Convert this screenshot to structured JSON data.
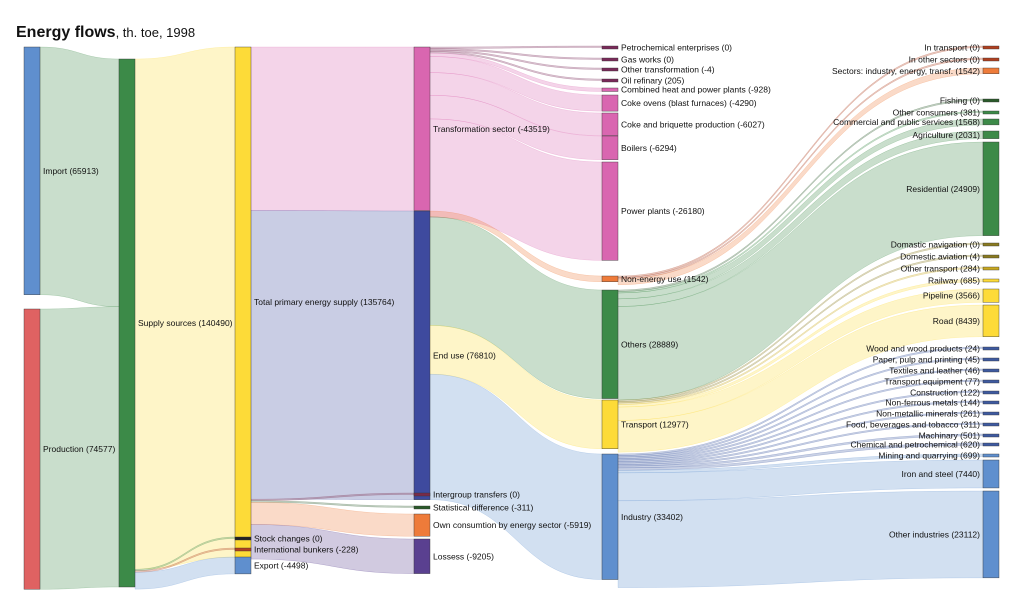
{
  "chart_data": {
    "type": "sankey",
    "title": "Energy flows",
    "subtitle": ", th. toe, 1998",
    "nodes": [
      {
        "id": "import",
        "label": "Import (65913)",
        "value": 65913,
        "color": "#5f8fce"
      },
      {
        "id": "production",
        "label": "Production (74577)",
        "value": 74577,
        "color": "#df6262"
      },
      {
        "id": "supply",
        "label": "Supply sources (140490)",
        "value": 140490,
        "color": "#3c8a48"
      },
      {
        "id": "tpes",
        "label": "Total primary energy supply (135764)",
        "value": 135764,
        "color": "#fddb38"
      },
      {
        "id": "stock",
        "label": "Stock changes (0)",
        "value": 0,
        "color": "#222222"
      },
      {
        "id": "bunkers",
        "label": "International bunkers (-228)",
        "value": -228,
        "color": "#b04020"
      },
      {
        "id": "export",
        "label": "Export (-4498)",
        "value": -4498,
        "color": "#5f8fce"
      },
      {
        "id": "transf",
        "label": "Transformation sector (-43519)",
        "value": -43519,
        "color": "#d966b0"
      },
      {
        "id": "enduse",
        "label": "End use (76810)",
        "value": 76810,
        "color": "#3e4a9e"
      },
      {
        "id": "intergroup",
        "label": "Intergroup transfers (0)",
        "value": 0,
        "color": "#7a2a4a"
      },
      {
        "id": "statdiff",
        "label": "Statistical difference (-311)",
        "value": -311,
        "color": "#2a5a2a"
      },
      {
        "id": "owncons",
        "label": "Own consumtion by energy sector (-5919)",
        "value": -5919,
        "color": "#ee7b3a"
      },
      {
        "id": "losses",
        "label": "Lossess (-9205)",
        "value": -9205,
        "color": "#5a4090"
      },
      {
        "id": "petrochem",
        "label": "Petrochemical enterprises (0)",
        "value": 0,
        "color": "#7a2a5a"
      },
      {
        "id": "gasworks",
        "label": "Gas works (0)",
        "value": 0,
        "color": "#7a2a5a"
      },
      {
        "id": "othertransf",
        "label": "Other transformation (-4)",
        "value": -4,
        "color": "#7a2a5a"
      },
      {
        "id": "oilref",
        "label": "Oil refinary (205)",
        "value": 205,
        "color": "#7a2a5a"
      },
      {
        "id": "chp",
        "label": "Combined heat and power plants (-928)",
        "value": -928,
        "color": "#d966b0"
      },
      {
        "id": "cokeovens",
        "label": "Coke ovens (blast furnaces) (-4290)",
        "value": -4290,
        "color": "#d966b0"
      },
      {
        "id": "briquette",
        "label": "Coke and briquette production (-6027)",
        "value": -6027,
        "color": "#d966b0"
      },
      {
        "id": "boilers",
        "label": "Boilers (-6294)",
        "value": -6294,
        "color": "#d966b0"
      },
      {
        "id": "powerplants",
        "label": "Power plants (-26180)",
        "value": -26180,
        "color": "#d966b0"
      },
      {
        "id": "nonenergy",
        "label": "Non-energy use (1542)",
        "value": 1542,
        "color": "#ee7b3a"
      },
      {
        "id": "others",
        "label": "Others (28889)",
        "value": 28889,
        "color": "#3c8a48"
      },
      {
        "id": "transport",
        "label": "Transport (12977)",
        "value": 12977,
        "color": "#fddb38"
      },
      {
        "id": "industry",
        "label": "Industry (33402)",
        "value": 33402,
        "color": "#5f8fce"
      },
      {
        "id": "intransport",
        "label": "In transport (0)",
        "value": 0,
        "color": "#b04020"
      },
      {
        "id": "inother",
        "label": "In other sectors (0)",
        "value": 0,
        "color": "#b04020"
      },
      {
        "id": "sectors",
        "label": "Sectors: industry, energy, transf. (1542)",
        "value": 1542,
        "color": "#ee7b3a"
      },
      {
        "id": "fishing",
        "label": "Fishing (0)",
        "value": 0,
        "color": "#2a5a2a"
      },
      {
        "id": "otherconsumers",
        "label": "Other consumers (381)",
        "value": 381,
        "color": "#3c8a48"
      },
      {
        "id": "commercial",
        "label": "Commercial and public services (1568)",
        "value": 1568,
        "color": "#3c8a48"
      },
      {
        "id": "agriculture",
        "label": "Agriculture (2031)",
        "value": 2031,
        "color": "#3c8a48"
      },
      {
        "id": "residential",
        "label": "Residential (24909)",
        "value": 24909,
        "color": "#3c8a48"
      },
      {
        "id": "domnav",
        "label": "Domastic navigation (0)",
        "value": 0,
        "color": "#8a7a20"
      },
      {
        "id": "domav",
        "label": "Domestic aviation (4)",
        "value": 4,
        "color": "#8a7a20"
      },
      {
        "id": "othertransport",
        "label": "Other transport (284)",
        "value": 284,
        "color": "#c8a820"
      },
      {
        "id": "railway",
        "label": "Railway (685)",
        "value": 685,
        "color": "#fddb38"
      },
      {
        "id": "pipeline",
        "label": "Pipeline (3566)",
        "value": 3566,
        "color": "#fddb38"
      },
      {
        "id": "road",
        "label": "Road (8439)",
        "value": 8439,
        "color": "#fddb38"
      },
      {
        "id": "wood",
        "label": "Wood and wood products (24)",
        "value": 24,
        "color": "#3e5aa0"
      },
      {
        "id": "paper",
        "label": "Paper, pulp and printing (45)",
        "value": 45,
        "color": "#3e5aa0"
      },
      {
        "id": "textiles",
        "label": "Textiles and leather (46)",
        "value": 46,
        "color": "#3e5aa0"
      },
      {
        "id": "transeq",
        "label": "Transport equipment (77)",
        "value": 77,
        "color": "#3e5aa0"
      },
      {
        "id": "construction",
        "label": "Construction (122)",
        "value": 122,
        "color": "#3e5aa0"
      },
      {
        "id": "nonferrous",
        "label": "Non-ferrous metals (144)",
        "value": 144,
        "color": "#3e5aa0"
      },
      {
        "id": "nonmetallic",
        "label": "Non-metallic minerals (261)",
        "value": 261,
        "color": "#3e5aa0"
      },
      {
        "id": "food",
        "label": "Food, beverages and tobacco (311)",
        "value": 311,
        "color": "#3e5aa0"
      },
      {
        "id": "machinery",
        "label": "Machinary (501)",
        "value": 501,
        "color": "#3e5aa0"
      },
      {
        "id": "chemical",
        "label": "Chemical and petrochemical (620)",
        "value": 620,
        "color": "#3e5aa0"
      },
      {
        "id": "mining",
        "label": "Mining and quarrying (699)",
        "value": 699,
        "color": "#5f8fce"
      },
      {
        "id": "ironsteel",
        "label": "Iron and steel (7440)",
        "value": 7440,
        "color": "#5f8fce"
      },
      {
        "id": "otherind",
        "label": "Other industries (23112)",
        "value": 23112,
        "color": "#5f8fce"
      }
    ],
    "links": [
      {
        "source": "import",
        "target": "supply",
        "value": 65913
      },
      {
        "source": "production",
        "target": "supply",
        "value": 74577
      },
      {
        "source": "supply",
        "target": "tpes",
        "value": 135764
      },
      {
        "source": "supply",
        "target": "stock",
        "value": 0
      },
      {
        "source": "supply",
        "target": "bunkers",
        "value": 228
      },
      {
        "source": "supply",
        "target": "export",
        "value": 4498
      },
      {
        "source": "tpes",
        "target": "transf",
        "value": 43519
      },
      {
        "source": "tpes",
        "target": "enduse",
        "value": 76810
      },
      {
        "source": "tpes",
        "target": "intergroup",
        "value": 0
      },
      {
        "source": "tpes",
        "target": "statdiff",
        "value": 311
      },
      {
        "source": "tpes",
        "target": "owncons",
        "value": 5919
      },
      {
        "source": "tpes",
        "target": "losses",
        "value": 9205
      },
      {
        "source": "transf",
        "target": "petrochem",
        "value": 0
      },
      {
        "source": "transf",
        "target": "gasworks",
        "value": 0
      },
      {
        "source": "transf",
        "target": "othertransf",
        "value": 4
      },
      {
        "source": "transf",
        "target": "oilref",
        "value": 205
      },
      {
        "source": "transf",
        "target": "chp",
        "value": 928
      },
      {
        "source": "transf",
        "target": "cokeovens",
        "value": 4290
      },
      {
        "source": "transf",
        "target": "briquette",
        "value": 6027
      },
      {
        "source": "transf",
        "target": "boilers",
        "value": 6294
      },
      {
        "source": "transf",
        "target": "powerplants",
        "value": 26180
      },
      {
        "source": "enduse",
        "target": "nonenergy",
        "value": 1542
      },
      {
        "source": "enduse",
        "target": "others",
        "value": 28889
      },
      {
        "source": "enduse",
        "target": "transport",
        "value": 12977
      },
      {
        "source": "enduse",
        "target": "industry",
        "value": 33402
      },
      {
        "source": "nonenergy",
        "target": "intransport",
        "value": 0
      },
      {
        "source": "nonenergy",
        "target": "inother",
        "value": 0
      },
      {
        "source": "nonenergy",
        "target": "sectors",
        "value": 1542
      },
      {
        "source": "others",
        "target": "fishing",
        "value": 0
      },
      {
        "source": "others",
        "target": "otherconsumers",
        "value": 381
      },
      {
        "source": "others",
        "target": "commercial",
        "value": 1568
      },
      {
        "source": "others",
        "target": "agriculture",
        "value": 2031
      },
      {
        "source": "others",
        "target": "residential",
        "value": 24909
      },
      {
        "source": "transport",
        "target": "domnav",
        "value": 0
      },
      {
        "source": "transport",
        "target": "domav",
        "value": 4
      },
      {
        "source": "transport",
        "target": "othertransport",
        "value": 284
      },
      {
        "source": "transport",
        "target": "railway",
        "value": 685
      },
      {
        "source": "transport",
        "target": "pipeline",
        "value": 3566
      },
      {
        "source": "transport",
        "target": "road",
        "value": 8439
      },
      {
        "source": "industry",
        "target": "wood",
        "value": 24
      },
      {
        "source": "industry",
        "target": "paper",
        "value": 45
      },
      {
        "source": "industry",
        "target": "textiles",
        "value": 46
      },
      {
        "source": "industry",
        "target": "transeq",
        "value": 77
      },
      {
        "source": "industry",
        "target": "construction",
        "value": 122
      },
      {
        "source": "industry",
        "target": "nonferrous",
        "value": 144
      },
      {
        "source": "industry",
        "target": "nonmetallic",
        "value": 261
      },
      {
        "source": "industry",
        "target": "food",
        "value": 311
      },
      {
        "source": "industry",
        "target": "machinery",
        "value": 501
      },
      {
        "source": "industry",
        "target": "chemical",
        "value": 620
      },
      {
        "source": "industry",
        "target": "mining",
        "value": 699
      },
      {
        "source": "industry",
        "target": "ironsteel",
        "value": 7440
      },
      {
        "source": "industry",
        "target": "otherind",
        "value": 23112
      }
    ]
  }
}
